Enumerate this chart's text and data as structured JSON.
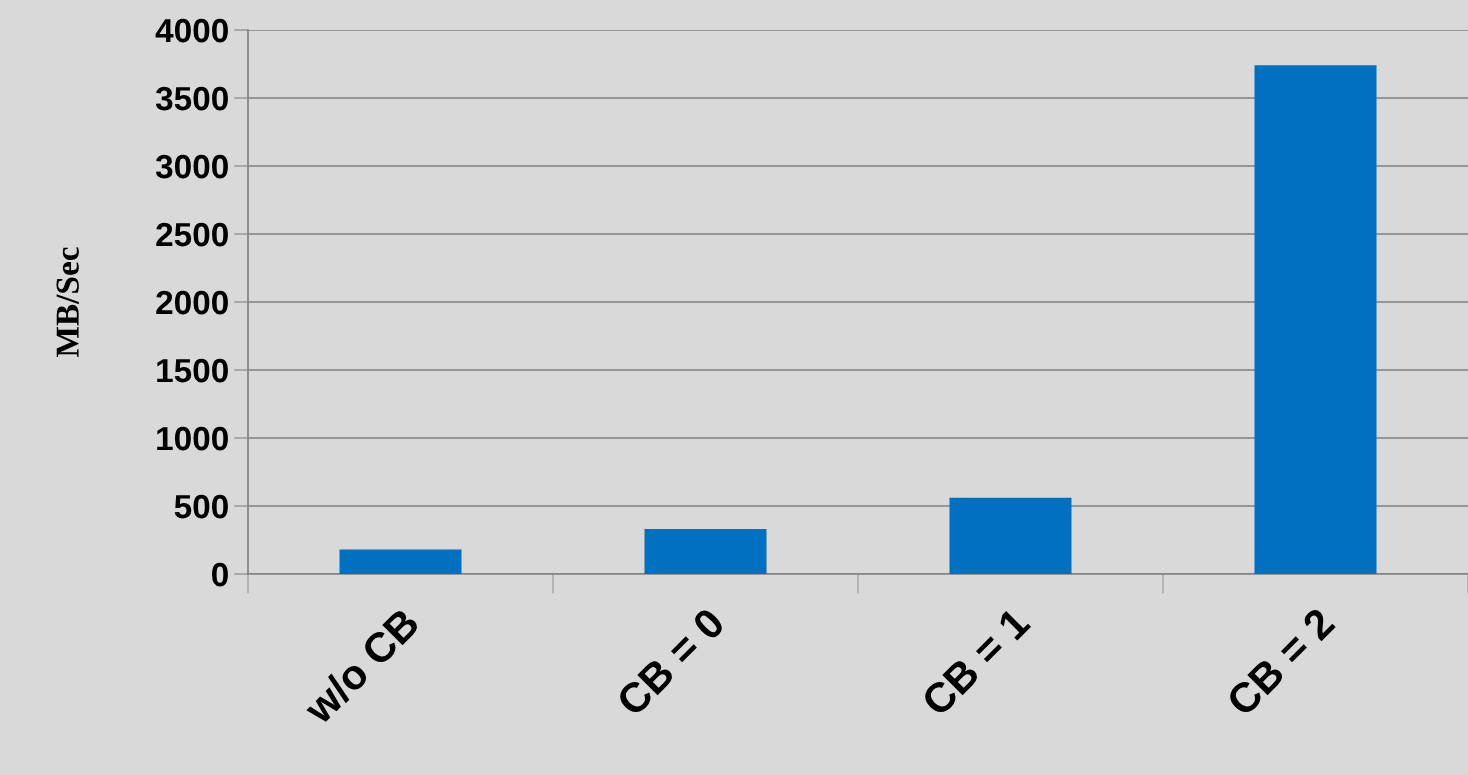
{
  "chart_data": {
    "type": "bar",
    "ylabel": "MB/Sec",
    "categories": [
      "w/o CB",
      "CB = 0",
      "CB = 1",
      "CB = 2"
    ],
    "values": [
      180,
      330,
      560,
      3740
    ],
    "color": "#0070c0",
    "ylim": [
      0,
      4000
    ],
    "yticks": [
      0,
      500,
      1000,
      1500,
      2000,
      2500,
      3000,
      3500,
      4000
    ],
    "grid": "y",
    "legend": false
  }
}
